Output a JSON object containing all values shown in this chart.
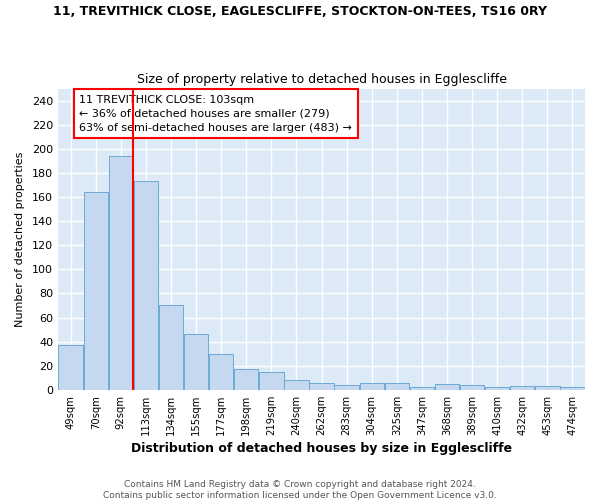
{
  "title": "11, TREVITHICK CLOSE, EAGLESCLIFFE, STOCKTON-ON-TEES, TS16 0RY",
  "subtitle": "Size of property relative to detached houses in Egglescliffe",
  "xlabel": "Distribution of detached houses by size in Egglescliffe",
  "ylabel": "Number of detached properties",
  "footer_line1": "Contains HM Land Registry data © Crown copyright and database right 2024.",
  "footer_line2": "Contains public sector information licensed under the Open Government Licence v3.0.",
  "categories": [
    "49sqm",
    "70sqm",
    "92sqm",
    "113sqm",
    "134sqm",
    "155sqm",
    "177sqm",
    "198sqm",
    "219sqm",
    "240sqm",
    "262sqm",
    "283sqm",
    "304sqm",
    "325sqm",
    "347sqm",
    "368sqm",
    "389sqm",
    "410sqm",
    "432sqm",
    "453sqm",
    "474sqm"
  ],
  "values": [
    37,
    164,
    194,
    173,
    70,
    46,
    30,
    17,
    15,
    8,
    6,
    4,
    6,
    6,
    2,
    5,
    4,
    2,
    3,
    3,
    2
  ],
  "bar_color": "#c5d8f0",
  "bar_edge_color": "#6aaad4",
  "background_color": "#dce9f7",
  "grid_color": "#ffffff",
  "red_line_x": 2.5,
  "annotation_text": "11 TREVITHICK CLOSE: 103sqm\n← 36% of detached houses are smaller (279)\n63% of semi-detached houses are larger (483) →",
  "ylim": [
    0,
    250
  ],
  "yticks": [
    0,
    20,
    40,
    60,
    80,
    100,
    120,
    140,
    160,
    180,
    200,
    220,
    240
  ]
}
